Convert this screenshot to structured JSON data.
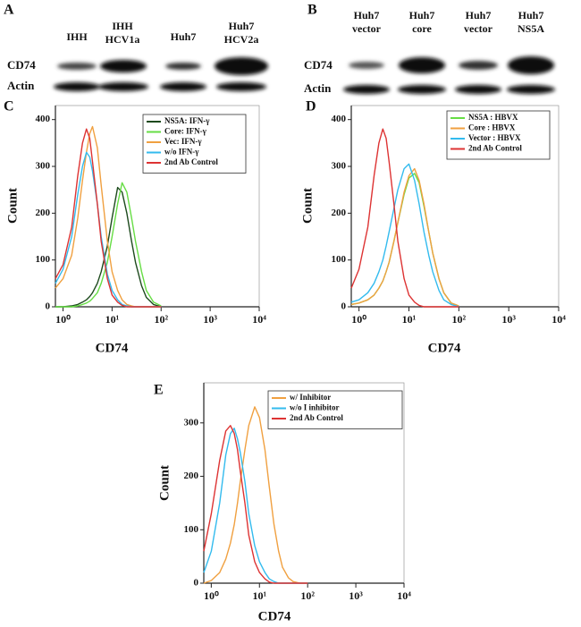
{
  "blots": [
    {
      "panel": "A",
      "rows": [
        "CD74",
        "Actin"
      ],
      "lanes": [
        [
          "IHH"
        ],
        [
          "IHH",
          "HCV1a"
        ],
        [
          "Huh7"
        ],
        [
          "Huh7",
          "HCV2a"
        ]
      ]
    },
    {
      "panel": "B",
      "rows": [
        "CD74",
        "Actin"
      ],
      "lanes": [
        [
          "Huh7",
          "vector"
        ],
        [
          "Huh7",
          "core"
        ],
        [
          "Huh7",
          "vector"
        ],
        [
          "Huh7",
          "NS5A"
        ]
      ]
    }
  ],
  "chart_data": [
    {
      "type": "line",
      "panel": "C",
      "xlabel": "CD74",
      "ylabel": "Count",
      "xscale": "log",
      "legend": "upper right",
      "xlim": [
        0.7,
        10000
      ],
      "ylim": [
        0,
        430
      ],
      "xticks": [
        {
          "value": 1,
          "label": "10⁰"
        },
        {
          "value": 10,
          "label": "10¹"
        },
        {
          "value": 100,
          "label": "10²"
        },
        {
          "value": 1000,
          "label": "10³"
        },
        {
          "value": 10000,
          "label": "10⁴"
        }
      ],
      "yticks": [
        0,
        100,
        200,
        300,
        400
      ],
      "x": [
        0.7,
        1,
        1.5,
        2,
        2.5,
        3,
        3.5,
        4,
        5,
        6,
        8,
        10,
        13,
        16,
        20,
        25,
        30,
        40,
        50,
        70,
        100
      ],
      "series": [
        {
          "name": "NS5A: IFN-γ",
          "color": "#1d4a1d",
          "values": [
            0,
            0,
            2,
            5,
            10,
            15,
            22,
            30,
            50,
            75,
            130,
            190,
            255,
            245,
            200,
            140,
            95,
            45,
            20,
            5,
            0
          ]
        },
        {
          "name": "Core: IFN-γ",
          "color": "#66dd44",
          "values": [
            0,
            0,
            0,
            2,
            5,
            8,
            12,
            18,
            30,
            50,
            95,
            150,
            220,
            265,
            245,
            190,
            140,
            75,
            35,
            10,
            2
          ]
        },
        {
          "name": "Vec: IFN-γ",
          "color": "#f0a040",
          "values": [
            40,
            60,
            110,
            190,
            270,
            330,
            370,
            385,
            340,
            260,
            140,
            75,
            35,
            15,
            5,
            2,
            0,
            0,
            0,
            0,
            0
          ]
        },
        {
          "name": "w/o IFN-γ",
          "color": "#33bbee",
          "values": [
            50,
            80,
            150,
            240,
            300,
            330,
            320,
            290,
            220,
            150,
            70,
            35,
            15,
            5,
            2,
            0,
            0,
            0,
            0,
            0,
            0
          ]
        },
        {
          "name": "2nd Ab Control",
          "color": "#dd3333",
          "values": [
            60,
            90,
            170,
            280,
            350,
            380,
            360,
            310,
            220,
            140,
            60,
            25,
            10,
            3,
            0,
            0,
            0,
            0,
            0,
            0,
            0
          ]
        }
      ]
    },
    {
      "type": "line",
      "panel": "D",
      "xlabel": "CD74",
      "ylabel": "Count",
      "xscale": "log",
      "legend": "upper right",
      "xlim": [
        0.7,
        10000
      ],
      "ylim": [
        0,
        430
      ],
      "xticks": [
        {
          "value": 1,
          "label": "10⁰"
        },
        {
          "value": 10,
          "label": "10¹"
        },
        {
          "value": 100,
          "label": "10²"
        },
        {
          "value": 1000,
          "label": "10³"
        },
        {
          "value": 10000,
          "label": "10⁴"
        }
      ],
      "yticks": [
        0,
        100,
        200,
        300,
        400
      ],
      "x": [
        0.7,
        1,
        1.5,
        2,
        2.5,
        3,
        3.5,
        4,
        5,
        6,
        8,
        10,
        13,
        16,
        20,
        25,
        30,
        40,
        50,
        70,
        100
      ],
      "series": [
        {
          "name": "NS5A : HBVX",
          "color": "#66dd44",
          "values": [
            5,
            8,
            15,
            25,
            40,
            55,
            75,
            95,
            140,
            180,
            240,
            275,
            285,
            265,
            215,
            160,
            115,
            60,
            30,
            8,
            2
          ]
        },
        {
          "name": "Core : HBVX",
          "color": "#f0a040",
          "values": [
            5,
            8,
            15,
            25,
            40,
            55,
            75,
            95,
            140,
            180,
            245,
            280,
            295,
            270,
            220,
            160,
            115,
            60,
            30,
            8,
            2
          ]
        },
        {
          "name": "Vector : HBVX",
          "color": "#33bbee",
          "values": [
            10,
            15,
            30,
            50,
            75,
            100,
            130,
            160,
            210,
            250,
            295,
            305,
            270,
            220,
            160,
            110,
            75,
            35,
            15,
            5,
            0
          ]
        },
        {
          "name": "2nd Ab Control",
          "color": "#dd3333",
          "values": [
            40,
            80,
            170,
            280,
            350,
            380,
            360,
            310,
            220,
            140,
            60,
            25,
            10,
            3,
            0,
            0,
            0,
            0,
            0,
            0,
            0
          ]
        }
      ]
    },
    {
      "type": "line",
      "panel": "E",
      "xlabel": "CD74",
      "ylabel": "Count",
      "xscale": "log",
      "legend": "upper right",
      "xlim": [
        0.7,
        10000
      ],
      "ylim": [
        0,
        375
      ],
      "xticks": [
        {
          "value": 1,
          "label": "10⁰"
        },
        {
          "value": 10,
          "label": "10¹"
        },
        {
          "value": 100,
          "label": "10²"
        },
        {
          "value": 1000,
          "label": "10³"
        },
        {
          "value": 10000,
          "label": "10⁴"
        }
      ],
      "yticks": [
        0,
        100,
        200,
        300
      ],
      "x": [
        0.7,
        1,
        1.5,
        2,
        2.5,
        3,
        3.5,
        4,
        5,
        6,
        8,
        10,
        13,
        16,
        20,
        25,
        30,
        40,
        50,
        70,
        100
      ],
      "series": [
        {
          "name": "w/  Inhibitor",
          "color": "#f0a040",
          "values": [
            0,
            5,
            20,
            45,
            75,
            110,
            150,
            190,
            250,
            295,
            330,
            310,
            250,
            180,
            110,
            60,
            30,
            10,
            3,
            0,
            0
          ]
        },
        {
          "name": "w/o I inhibitor",
          "color": "#33bbee",
          "values": [
            20,
            60,
            150,
            240,
            280,
            290,
            270,
            245,
            190,
            130,
            70,
            40,
            20,
            8,
            3,
            0,
            0,
            0,
            0,
            0,
            0
          ]
        },
        {
          "name": "2nd Ab Control",
          "color": "#dd3333",
          "values": [
            60,
            130,
            230,
            285,
            295,
            280,
            250,
            210,
            150,
            90,
            40,
            20,
            8,
            2,
            0,
            0,
            0,
            0,
            0,
            0,
            0
          ]
        }
      ]
    }
  ]
}
